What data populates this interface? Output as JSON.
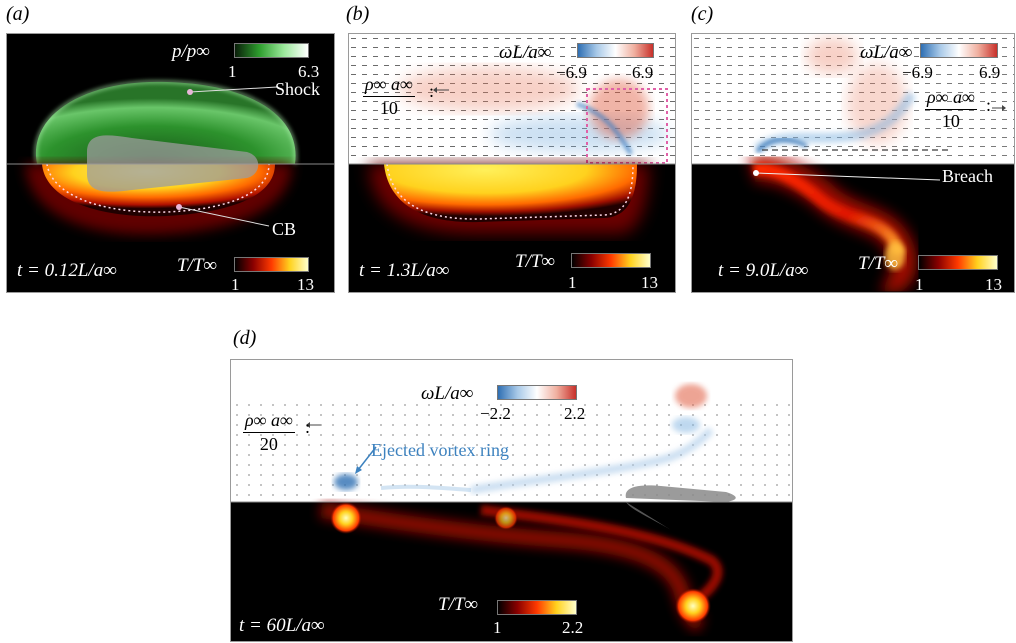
{
  "panels": {
    "a": {
      "label": "(a)",
      "pressure_label": "p/p∞",
      "pressure_min": "1",
      "pressure_max": "6.3",
      "temp_label": "T/T∞",
      "temp_min": "1",
      "temp_max": "13",
      "time": "t = 0.12L/a∞",
      "annotation_shock": "Shock",
      "annotation_cb": "CB"
    },
    "b": {
      "label": "(b)",
      "vort_label": "ωL/a∞",
      "vort_min": "−6.9",
      "vort_max": "6.9",
      "ref_num": "ρ∞ a∞",
      "ref_den": "10",
      "temp_label": "T/T∞",
      "temp_min": "1",
      "temp_max": "13",
      "time": "t = 1.3L/a∞"
    },
    "c": {
      "label": "(c)",
      "vort_label": "ωL/a∞",
      "vort_min": "−6.9",
      "vort_max": "6.9",
      "ref_num": "ρ∞ a∞",
      "ref_den": "10",
      "temp_label": "T/T∞",
      "temp_min": "1",
      "temp_max": "13",
      "time": "t = 9.0L/a∞",
      "annotation_breach": "Breach"
    },
    "d": {
      "label": "(d)",
      "vort_label": "ωL/a∞",
      "vort_min": "−2.2",
      "vort_max": "2.2",
      "ref_num": "ρ∞ a∞",
      "ref_den": "20",
      "annotation_ring": "Ejected vortex ring",
      "temp_label": "T/T∞",
      "temp_min": "1",
      "temp_max": "2.2",
      "time": "t = 60L/a∞"
    }
  },
  "colors": {
    "pressure": "#2e9e2e",
    "vort_neg": "#3d7fc2",
    "vort_pos": "#d0452f",
    "temp_mid": "#ff3a00",
    "temp_high": "#ffe830",
    "annotation_ring": "#3d82bf"
  }
}
